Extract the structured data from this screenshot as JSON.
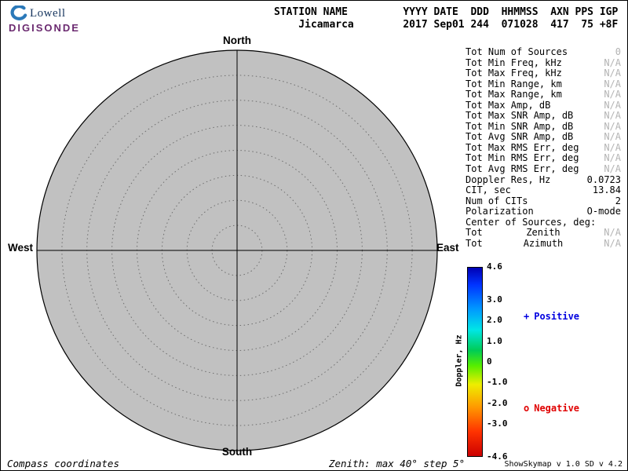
{
  "logo": {
    "line1": "Lowell",
    "line2": "DIGISONDE"
  },
  "header": {
    "line1": "STATION NAME         YYYY DATE  DDD  HHMMSS  AXN PPS IGP",
    "line2": "    Jicamarca        2017 Sep01 244  071028  417  75 +8F"
  },
  "compass": {
    "north": "North",
    "south": "South",
    "east": "East",
    "west": "West"
  },
  "stats": {
    "rows": [
      {
        "label": "Tot Num of Sources",
        "mid": "",
        "value": "0",
        "na": true
      },
      {
        "label": "Tot Min Freq, kHz",
        "mid": "",
        "value": "N/A",
        "na": true
      },
      {
        "label": "Tot Max Freq, kHz",
        "mid": "",
        "value": "N/A",
        "na": true
      },
      {
        "label": "Tot Min Range, km",
        "mid": "",
        "value": "N/A",
        "na": true
      },
      {
        "label": "Tot Max Range, km",
        "mid": "",
        "value": "N/A",
        "na": true
      },
      {
        "label": "Tot Max Amp, dB",
        "mid": "",
        "value": "N/A",
        "na": true
      },
      {
        "label": "Tot Max SNR Amp, dB",
        "mid": "",
        "value": "N/A",
        "na": true
      },
      {
        "label": "Tot Min SNR Amp, dB",
        "mid": "",
        "value": "N/A",
        "na": true
      },
      {
        "label": "Tot Avg SNR Amp, dB",
        "mid": "",
        "value": "N/A",
        "na": true
      },
      {
        "label": "Tot Max RMS Err, deg",
        "mid": "",
        "value": "N/A",
        "na": true
      },
      {
        "label": "Tot Min RMS Err, deg",
        "mid": "",
        "value": "N/A",
        "na": true
      },
      {
        "label": "Tot Avg RMS Err, deg",
        "mid": "",
        "value": "N/A",
        "na": true
      },
      {
        "label": "Doppler Res, Hz",
        "mid": "",
        "value": "0.0723",
        "na": false
      },
      {
        "label": "CIT, sec",
        "mid": "",
        "value": "13.84",
        "na": false
      },
      {
        "label": "Num of CITs",
        "mid": "",
        "value": "2",
        "na": false
      },
      {
        "label": "Polarization",
        "mid": "",
        "value": "O-mode",
        "na": false
      },
      {
        "label": "Center of Sources, deg:",
        "mid": "",
        "value": "",
        "na": false
      },
      {
        "label": "Tot",
        "mid": "Zenith",
        "value": "N/A",
        "na": true
      },
      {
        "label": "Tot",
        "mid": "Azimuth",
        "value": "N/A",
        "na": true
      }
    ]
  },
  "colorbar": {
    "title": "Doppler, Hz",
    "max": 4.6,
    "min": -4.6,
    "ticks": [
      4.6,
      3.0,
      2.0,
      1.0,
      0,
      -1.0,
      -2.0,
      -3.0,
      -4.6
    ],
    "tick_labels": [
      "4.6",
      "3.0",
      "2.0",
      "1.0",
      "0",
      "-1.0",
      "-2.0",
      "-3.0",
      "-4.6"
    ],
    "gradient": [
      "#0000b4 0%",
      "#0033ff 9%",
      "#0099ff 22%",
      "#00e6e6 33%",
      "#00cc55 44%",
      "#55ee00 52%",
      "#eeee00 62%",
      "#ff9900 74%",
      "#ff3300 87%",
      "#cc0000 100%"
    ]
  },
  "legend": {
    "positive": {
      "marker": "+",
      "label": "Positive",
      "color": "#0000e0"
    },
    "negative": {
      "marker": "o",
      "label": "Negative",
      "color": "#e00000"
    }
  },
  "footer": {
    "left": "Compass coordinates",
    "center": "Zenith: max 40°  step 5°",
    "right": "ShowSkymap v 1.0   SD v 4.2"
  }
}
